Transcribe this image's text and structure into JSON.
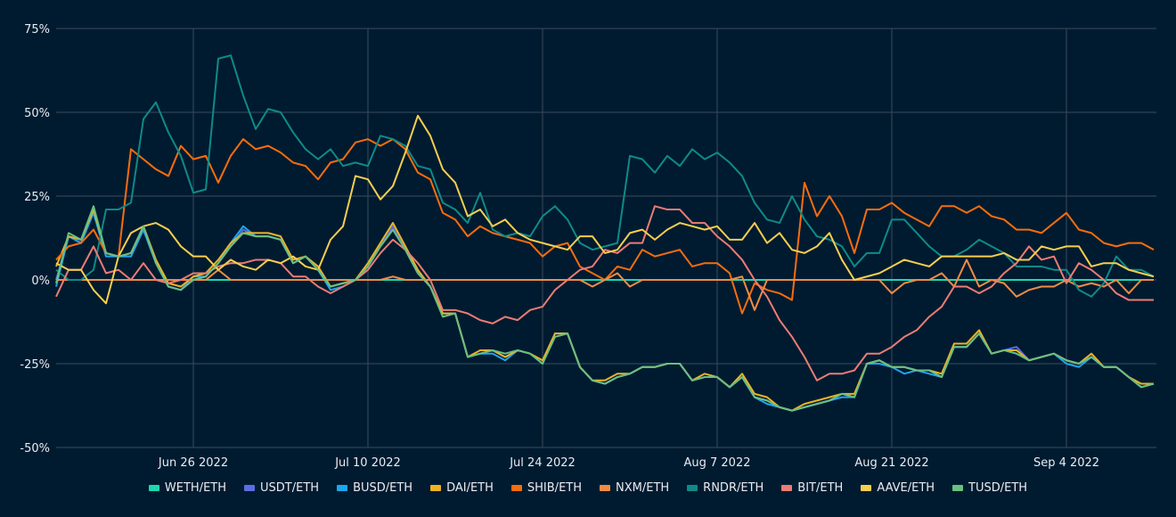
{
  "chart_data": {
    "type": "line",
    "title": "",
    "xlabel": "",
    "ylabel": "",
    "x_start": "2022-06-15",
    "x_interval_days": 1,
    "x_ticks": [
      {
        "label": "Jun 26 2022",
        "day": 11
      },
      {
        "label": "Jul 10 2022",
        "day": 25
      },
      {
        "label": "Jul 24 2022",
        "day": 39
      },
      {
        "label": "Aug 7 2022",
        "day": 53
      },
      {
        "label": "Aug 21 2022",
        "day": 67
      },
      {
        "label": "Sep 4 2022",
        "day": 81
      }
    ],
    "y_ticks": [
      {
        "label": "75%",
        "value": 75
      },
      {
        "label": "50%",
        "value": 50
      },
      {
        "label": "25%",
        "value": 25
      },
      {
        "label": "0%",
        "value": 0
      },
      {
        "label": "-25%",
        "value": -25
      },
      {
        "label": "-50%",
        "value": -50
      }
    ],
    "ylim": [
      -50,
      75
    ],
    "grid": true,
    "legend_position": "bottom",
    "series": [
      {
        "name": "WETH/ETH",
        "color": "#1ad9b0",
        "values": [
          0,
          0,
          0,
          0,
          0,
          0,
          0,
          0,
          0,
          0,
          0,
          0,
          0,
          0,
          0,
          0,
          0,
          0,
          0,
          0,
          0,
          0,
          0,
          0,
          0,
          0,
          0,
          0,
          0,
          0,
          0,
          0,
          0,
          0,
          0,
          0,
          0,
          0,
          0,
          0,
          0,
          0,
          0,
          0,
          0,
          0,
          0,
          0,
          0,
          0,
          0,
          0,
          0,
          0,
          0,
          0,
          0,
          0,
          0,
          0,
          0,
          0,
          0,
          0,
          0,
          0,
          0,
          0,
          0,
          0,
          0,
          0,
          0,
          0,
          0,
          0,
          0,
          0,
          0,
          0,
          0,
          0,
          0,
          0,
          0,
          0,
          0,
          0,
          0
        ]
      },
      {
        "name": "USDT/ETH",
        "color": "#5b6ee1",
        "values": [
          0,
          13,
          11,
          21,
          8,
          7,
          7,
          15,
          5,
          -2,
          -3,
          0,
          1,
          5,
          10,
          15,
          13,
          13,
          12,
          5,
          7,
          3,
          -2,
          -1,
          0,
          4,
          10,
          16,
          9,
          2,
          -2,
          -10,
          -10,
          -23,
          -22,
          -21,
          -23,
          -21,
          -22,
          -25,
          -16,
          -16,
          -26,
          -30,
          -31,
          -29,
          -28,
          -26,
          -26,
          -25,
          -25,
          -30,
          -29,
          -29,
          -32,
          -29,
          -35,
          -36,
          -38,
          -39,
          -38,
          -37,
          -36,
          -34,
          -35,
          -25,
          -24,
          -26,
          -26,
          -27,
          -27,
          -29,
          -20,
          -20,
          -16,
          -22,
          -21,
          -20,
          -24,
          -23,
          -22,
          -24,
          -25,
          -23,
          -26,
          -26,
          -29,
          -32,
          -31
        ]
      },
      {
        "name": "BUSD/ETH",
        "color": "#1ea5f0",
        "values": [
          -2,
          13,
          11,
          20,
          7,
          7,
          7,
          15,
          5,
          -2,
          -3,
          1,
          1,
          5,
          11,
          16,
          13,
          13,
          12,
          5,
          7,
          3,
          -3,
          -2,
          0,
          4,
          10,
          15,
          9,
          2,
          -2,
          -10,
          -10,
          -23,
          -22,
          -22,
          -24,
          -21,
          -22,
          -25,
          -16,
          -16,
          -26,
          -30,
          -31,
          -29,
          -28,
          -26,
          -26,
          -25,
          -25,
          -30,
          -29,
          -29,
          -32,
          -29,
          -35,
          -37,
          -38,
          -39,
          -38,
          -37,
          -36,
          -35,
          -35,
          -25,
          -25,
          -26,
          -28,
          -27,
          -28,
          -29,
          -20,
          -20,
          -16,
          -22,
          -21,
          -22,
          -24,
          -23,
          -22,
          -25,
          -26,
          -23,
          -26,
          -26,
          -29,
          -32,
          -31
        ]
      },
      {
        "name": "DAI/ETH",
        "color": "#f0b323",
        "values": [
          4,
          13,
          12,
          21,
          8,
          7,
          8,
          16,
          6,
          -1,
          -2,
          1,
          2,
          6,
          11,
          14,
          14,
          14,
          13,
          6,
          7,
          4,
          -2,
          -1,
          0,
          5,
          11,
          17,
          10,
          3,
          -2,
          -10,
          -10,
          -23,
          -21,
          -21,
          -23,
          -21,
          -22,
          -24,
          -16,
          -16,
          -26,
          -30,
          -30,
          -28,
          -28,
          -26,
          -26,
          -25,
          -25,
          -30,
          -28,
          -29,
          -32,
          -28,
          -34,
          -35,
          -38,
          -39,
          -37,
          -36,
          -35,
          -34,
          -34,
          -25,
          -24,
          -26,
          -26,
          -27,
          -27,
          -28,
          -19,
          -19,
          -15,
          -22,
          -21,
          -21,
          -24,
          -23,
          -22,
          -24,
          -25,
          -22,
          -26,
          -26,
          -29,
          -31,
          -31
        ]
      },
      {
        "name": "SHIB/ETH",
        "color": "#f96d0c",
        "values": [
          6,
          10,
          11,
          15,
          8,
          7,
          39,
          36,
          33,
          31,
          40,
          36,
          37,
          29,
          37,
          42,
          39,
          40,
          38,
          35,
          34,
          30,
          35,
          36,
          41,
          42,
          40,
          42,
          39,
          32,
          30,
          20,
          18,
          13,
          16,
          14,
          13,
          12,
          11,
          7,
          10,
          11,
          4,
          2,
          0,
          4,
          3,
          9,
          7,
          8,
          9,
          4,
          5,
          5,
          2,
          -10,
          -1,
          -3,
          -4,
          -6,
          29,
          19,
          25,
          19,
          8,
          21,
          21,
          23,
          20,
          18,
          16,
          22,
          22,
          20,
          22,
          19,
          18,
          15,
          15,
          14,
          17,
          20,
          15,
          14,
          11,
          10,
          11,
          11,
          9
        ]
      },
      {
        "name": "NXM/ETH",
        "color": "#ef8c43",
        "values": [
          0,
          0,
          0,
          0,
          0,
          0,
          0,
          0,
          0,
          0,
          0,
          0,
          0,
          3,
          0,
          0,
          0,
          0,
          0,
          0,
          0,
          0,
          0,
          0,
          0,
          0,
          0,
          1,
          0,
          0,
          0,
          0,
          0,
          0,
          0,
          0,
          0,
          0,
          0,
          0,
          0,
          0,
          0,
          -2,
          0,
          2,
          -2,
          0,
          0,
          0,
          0,
          0,
          0,
          0,
          0,
          1,
          -9,
          0,
          0,
          0,
          0,
          0,
          0,
          0,
          0,
          0,
          0,
          -4,
          -1,
          0,
          0,
          2,
          -2,
          6,
          -2,
          0,
          -1,
          -5,
          -3,
          -2,
          -2,
          0,
          -2,
          -1,
          -2,
          0,
          -4,
          0,
          0
        ]
      },
      {
        "name": "RNDR/ETH",
        "color": "#0f8a87",
        "values": [
          3,
          0,
          0,
          3,
          21,
          21,
          23,
          48,
          53,
          44,
          37,
          26,
          27,
          66,
          67,
          55,
          45,
          51,
          50,
          44,
          39,
          36,
          39,
          34,
          35,
          34,
          43,
          42,
          40,
          34,
          33,
          23,
          21,
          17,
          26,
          15,
          13,
          14,
          13,
          19,
          22,
          18,
          11,
          9,
          10,
          11,
          37,
          36,
          32,
          37,
          34,
          39,
          36,
          38,
          35,
          31,
          23,
          18,
          17,
          25,
          18,
          13,
          12,
          10,
          4,
          8,
          8,
          18,
          18,
          14,
          10,
          7,
          7,
          9,
          12,
          10,
          8,
          4,
          4,
          4,
          3,
          3,
          -3,
          -5,
          -1,
          7,
          3,
          3,
          1
        ]
      },
      {
        "name": "BIT/ETH",
        "color": "#ec7c74",
        "values": [
          -5,
          3,
          3,
          10,
          2,
          3,
          0,
          5,
          0,
          -1,
          0,
          2,
          2,
          4,
          5,
          5,
          6,
          6,
          5,
          1,
          1,
          -2,
          -4,
          -2,
          0,
          3,
          8,
          12,
          9,
          5,
          0,
          -9,
          -9,
          -10,
          -12,
          -13,
          -11,
          -12,
          -9,
          -8,
          -3,
          0,
          3,
          4,
          9,
          8,
          11,
          11,
          22,
          21,
          21,
          17,
          17,
          13,
          10,
          6,
          0,
          -5,
          -12,
          -17,
          -23,
          -30,
          -28,
          -28,
          -27,
          -22,
          -22,
          -20,
          -17,
          -15,
          -11,
          -8,
          -2,
          -2,
          -4,
          -2,
          2,
          5,
          10,
          6,
          7,
          -1,
          5,
          3,
          0,
          -4,
          -6,
          -6,
          -6
        ]
      },
      {
        "name": "AAVE/ETH",
        "color": "#f6cf4f",
        "values": [
          5,
          3,
          3,
          -3,
          -7,
          7,
          14,
          16,
          17,
          15,
          10,
          7,
          7,
          3,
          6,
          4,
          3,
          6,
          5,
          7,
          4,
          3,
          12,
          16,
          31,
          30,
          24,
          28,
          38,
          49,
          43,
          33,
          29,
          19,
          21,
          16,
          18,
          14,
          12,
          11,
          10,
          9,
          13,
          13,
          8,
          9,
          14,
          15,
          12,
          15,
          17,
          16,
          15,
          16,
          12,
          12,
          17,
          11,
          14,
          9,
          8,
          10,
          14,
          6,
          0,
          1,
          2,
          4,
          6,
          5,
          4,
          7,
          7,
          7,
          7,
          7,
          8,
          6,
          6,
          10,
          9,
          10,
          10,
          4,
          5,
          5,
          3,
          2,
          1
        ]
      },
      {
        "name": "TUSD/ETH",
        "color": "#6bbf7f",
        "values": [
          -1,
          14,
          12,
          22,
          8,
          7,
          8,
          16,
          5,
          -2,
          -3,
          0,
          1,
          5,
          10,
          14,
          13,
          13,
          12,
          5,
          7,
          3,
          -2,
          -1,
          0,
          4,
          10,
          15,
          9,
          2,
          -2,
          -11,
          -10,
          -23,
          -22,
          -21,
          -22,
          -21,
          -22,
          -25,
          -17,
          -16,
          -26,
          -30,
          -31,
          -29,
          -28,
          -26,
          -26,
          -25,
          -25,
          -30,
          -29,
          -29,
          -32,
          -29,
          -35,
          -36,
          -38,
          -39,
          -38,
          -37,
          -36,
          -34,
          -35,
          -25,
          -24,
          -26,
          -26,
          -27,
          -27,
          -29,
          -20,
          -20,
          -16,
          -22,
          -21,
          -22,
          -24,
          -23,
          -22,
          -24,
          -25,
          -23,
          -26,
          -26,
          -29,
          -32,
          -31
        ]
      }
    ]
  }
}
